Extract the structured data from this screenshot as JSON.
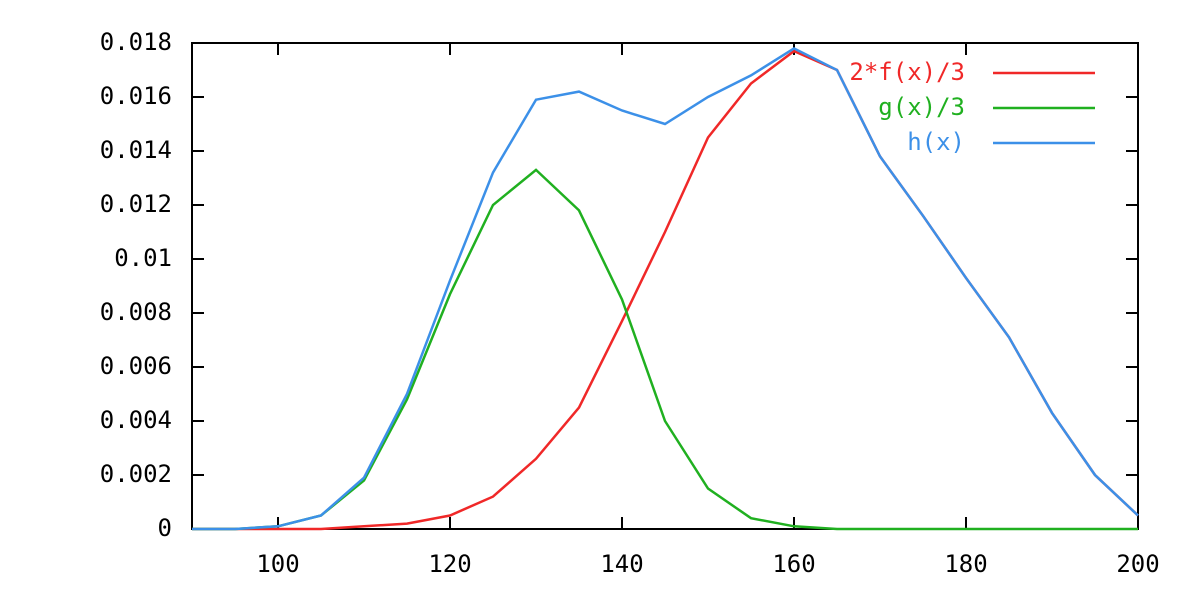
{
  "chart_data": {
    "type": "line",
    "x": [
      90,
      95,
      100,
      105,
      110,
      115,
      120,
      125,
      130,
      135,
      140,
      145,
      150,
      155,
      160,
      165,
      170,
      175,
      180,
      185,
      190,
      195,
      200
    ],
    "series": [
      {
        "name": "2*f(x)/3",
        "color": "#f02828",
        "values": [
          0,
          0,
          0,
          0,
          0.0001,
          0.0002,
          0.0005,
          0.0012,
          0.0026,
          0.0045,
          0.0077,
          0.011,
          0.0145,
          0.0165,
          0.0177,
          0.017,
          0.0138,
          0.0116,
          0.0093,
          0.0071,
          0.0043,
          0.002,
          0.0005
        ]
      },
      {
        "name": "g(x)/3",
        "color": "#20b020",
        "values": [
          0,
          0,
          0.0001,
          0.0005,
          0.0018,
          0.0048,
          0.0087,
          0.012,
          0.0133,
          0.0118,
          0.0085,
          0.004,
          0.0015,
          0.0004,
          0.0001,
          0,
          0,
          0,
          0,
          0,
          0,
          0,
          0
        ]
      },
      {
        "name": "h(x)",
        "color": "#3c90e8",
        "values": [
          0,
          0,
          0.0001,
          0.0005,
          0.0019,
          0.005,
          0.0092,
          0.0132,
          0.0159,
          0.0162,
          0.0155,
          0.015,
          0.016,
          0.0168,
          0.0178,
          0.017,
          0.0138,
          0.0116,
          0.0093,
          0.0071,
          0.0043,
          0.002,
          0.0005
        ]
      }
    ],
    "xlim": [
      90,
      200
    ],
    "xticks": [
      100,
      120,
      140,
      160,
      180,
      200
    ],
    "ylim": [
      0,
      0.018
    ],
    "yticks": [
      0,
      0.002,
      0.004,
      0.006,
      0.008,
      0.01,
      0.012,
      0.014,
      0.016,
      0.018
    ],
    "legend": "top right"
  }
}
